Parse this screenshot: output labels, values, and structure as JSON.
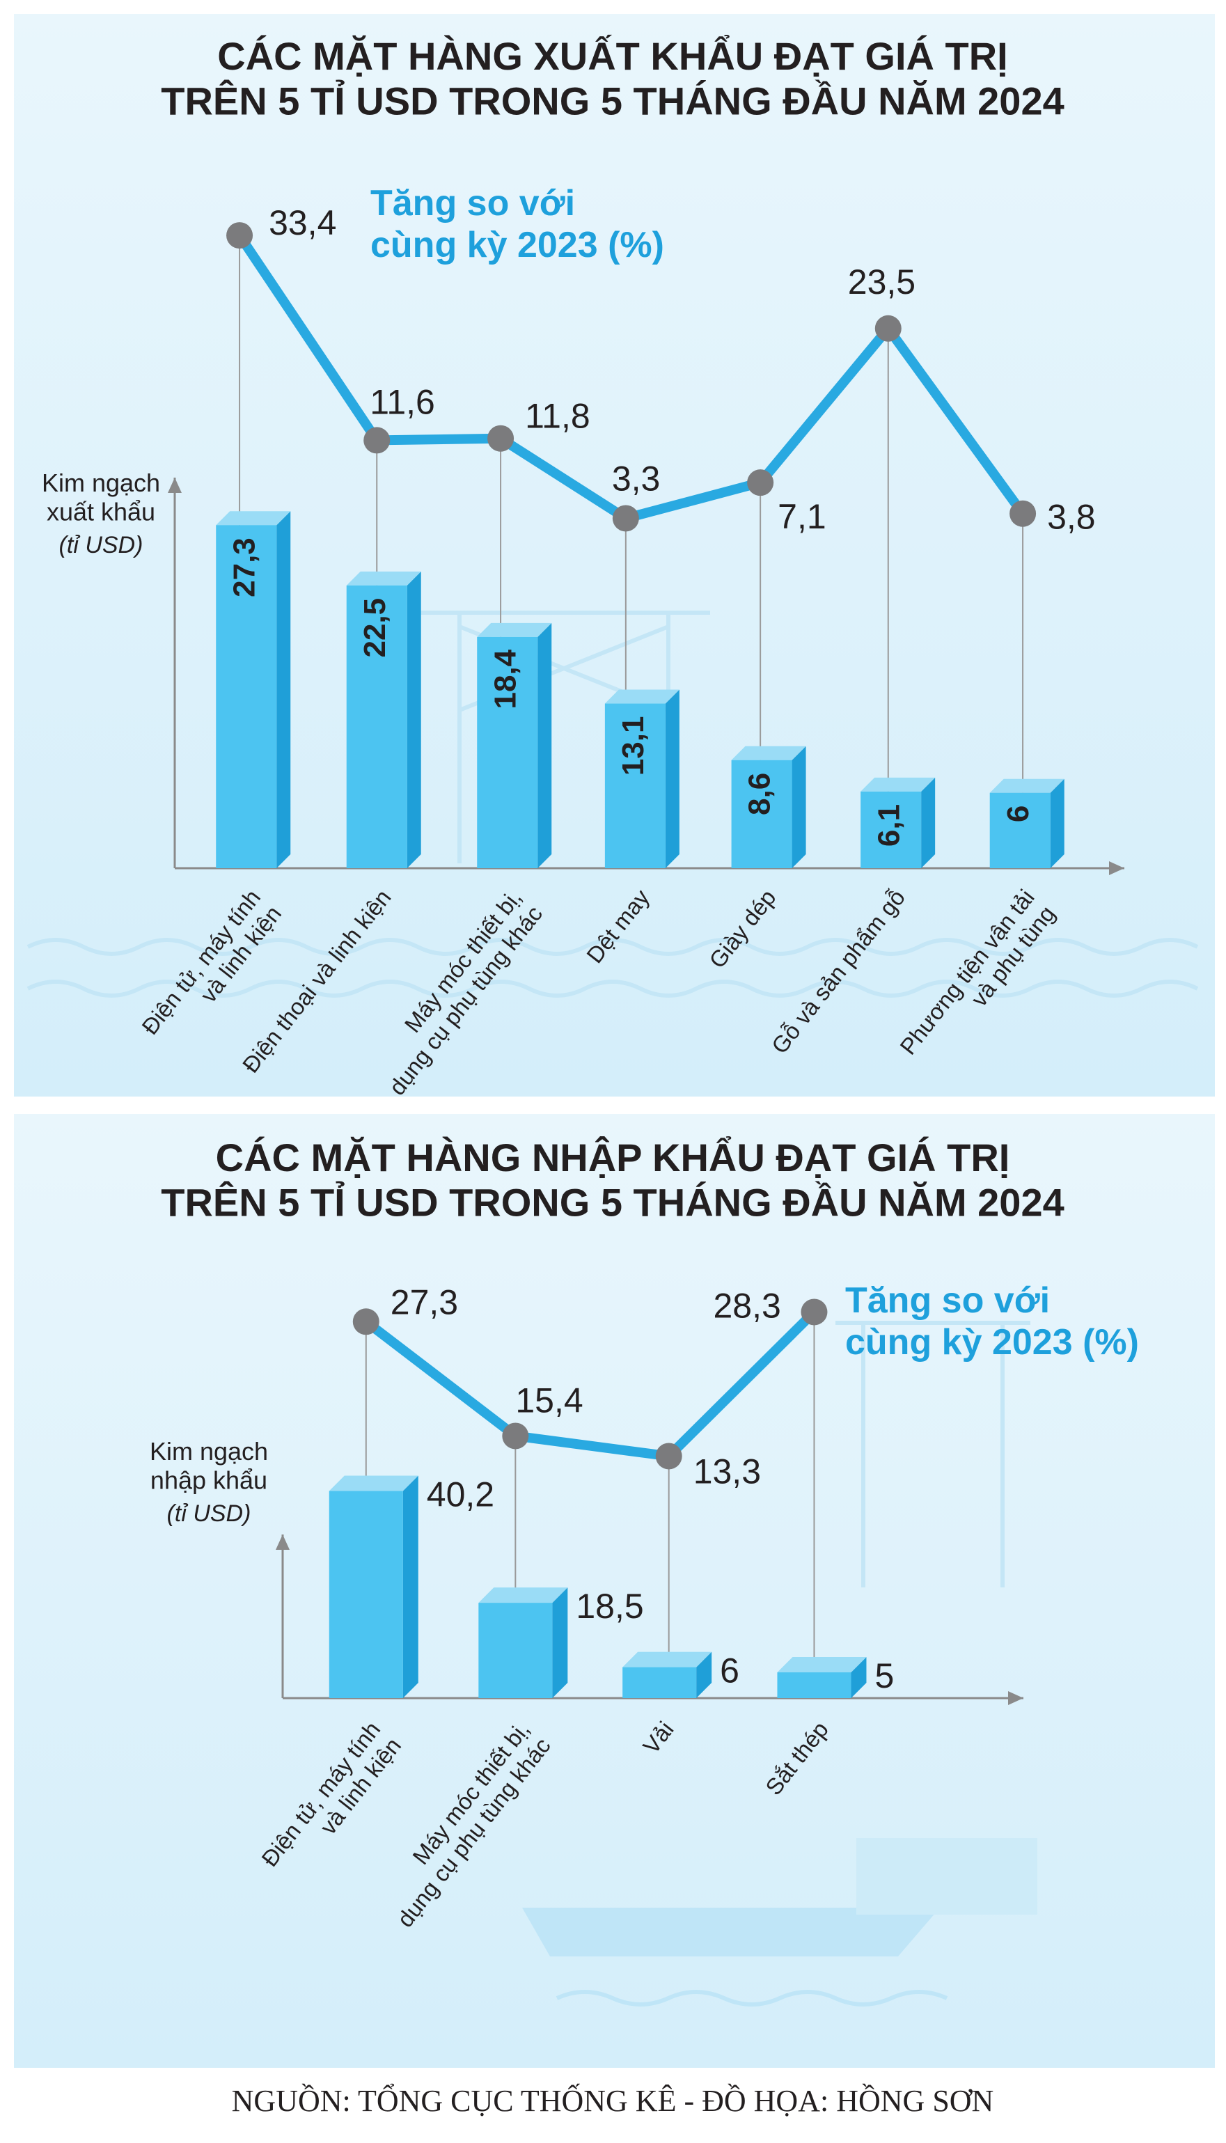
{
  "chart_data": [
    {
      "type": "bar",
      "title": "CÁC MẶT HÀNG XUẤT KHẨU ĐẠT GIÁ TRỊ\nTRÊN 5 TỈ USD TRONG 5 THÁNG ĐẦU NĂM 2024",
      "y_label": "Kim ngạch\nxuất khẩu",
      "y_unit": "(tỉ USD)",
      "categories": [
        "Điện tử, máy tính\nvà linh kiện",
        "Điện thoại và linh kiện",
        "Máy móc thiết bị,\ndụng cụ phụ tùng khác",
        "Dệt may",
        "Giày dép",
        "Gỗ và sản phẩm gỗ",
        "Phương tiện vận tải\nvà phụ tùng"
      ],
      "ylim": [
        0,
        40
      ],
      "y2lim": [
        0,
        40
      ],
      "series": [
        {
          "type": "bar",
          "color": "#4cc4f1",
          "values": [
            27.3,
            22.5,
            18.4,
            13.1,
            8.6,
            6.1,
            6
          ],
          "value_labels": [
            "27,3",
            "22,5",
            "18,4",
            "13,1",
            "8,6",
            "6,1",
            "6"
          ]
        },
        {
          "type": "line",
          "axis": "y2",
          "name": "Tăng so với\ncùng kỳ 2023 (%)",
          "color": "#29a9e1",
          "values": [
            33.4,
            11.6,
            11.8,
            3.3,
            7.1,
            23.5,
            3.8
          ],
          "value_labels": [
            "33,4",
            "11,6",
            "11,8",
            "3,3",
            "7,1",
            "23,5",
            "3,8"
          ]
        }
      ]
    },
    {
      "type": "bar",
      "title": "CÁC MẶT HÀNG NHẬP KHẨU ĐẠT GIÁ TRỊ\nTRÊN 5 TỈ USD TRONG 5 THÁNG ĐẦU NĂM 2024",
      "y_label": "Kim ngạch\nnhập khẩu",
      "y_unit": "(tỉ USD)",
      "categories": [
        "Điện tử, máy tính\nvà linh kiện",
        "Máy móc thiết bị,\ndụng cụ phụ tùng khác",
        "Vải",
        "Sắt thép"
      ],
      "ylim": [
        0,
        60
      ],
      "y2lim": [
        0,
        30
      ],
      "series": [
        {
          "type": "bar",
          "color": "#4cc4f1",
          "values": [
            40.2,
            18.5,
            6,
            5
          ],
          "value_labels": [
            "40,2",
            "18,5",
            "6",
            "5"
          ]
        },
        {
          "type": "line",
          "axis": "y2",
          "name": "Tăng so với\ncùng kỳ 2023 (%)",
          "color": "#29a9e1",
          "values": [
            27.3,
            15.4,
            13.3,
            28.3
          ],
          "value_labels": [
            "27,3",
            "15,4",
            "13,3",
            "28,3"
          ]
        }
      ]
    }
  ],
  "source": "NGUỒN: TỔNG CỤC THỐNG KÊ - ĐỒ HỌA: HỒNG SƠN"
}
